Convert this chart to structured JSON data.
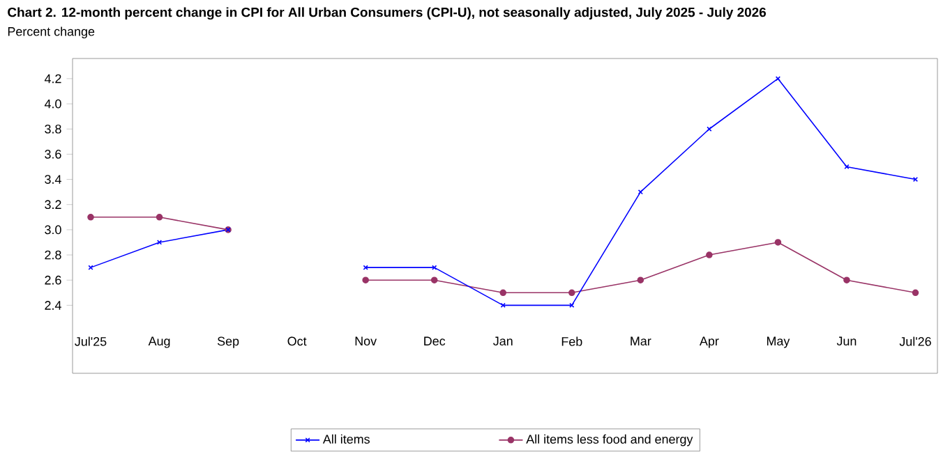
{
  "chart_data": {
    "type": "line",
    "title": "Chart 2. 12-month percent change in CPI for All Urban Consumers (CPI-U), not seasonally adjusted, July 2025 - July 2026",
    "ylabel": "Percent change",
    "categories": [
      "Jul'25",
      "Aug",
      "Sep",
      "Oct",
      "Nov",
      "Dec",
      "Jan",
      "Feb",
      "Mar",
      "Apr",
      "May",
      "Jun",
      "Jul'26"
    ],
    "series": [
      {
        "name": "All items",
        "color": "#0000ff",
        "marker": "cross",
        "values": [
          2.7,
          2.9,
          3.0,
          null,
          2.7,
          2.7,
          2.4,
          2.4,
          3.3,
          3.8,
          4.2,
          3.5,
          3.4
        ]
      },
      {
        "name": "All items less food and energy",
        "color": "#993366",
        "marker": "circle",
        "values": [
          3.1,
          3.1,
          3.0,
          null,
          2.6,
          2.6,
          2.5,
          2.5,
          2.6,
          2.8,
          2.9,
          2.6,
          2.5
        ]
      }
    ],
    "ylim": [
      1.86,
      4.36
    ],
    "yticks": [
      2.4,
      2.6,
      2.8,
      {
        "value": 3.0,
        "label": "3.0"
      },
      3.2,
      3.4,
      3.6,
      3.8,
      {
        "value": 4.0,
        "label": "4.0"
      },
      4.2
    ],
    "grid": false,
    "legend": "bottom",
    "line_style": "solid"
  }
}
